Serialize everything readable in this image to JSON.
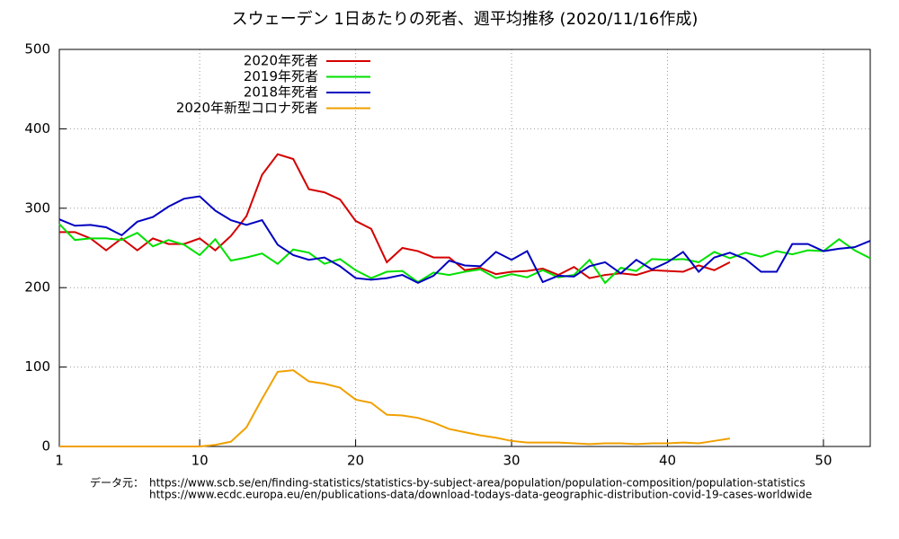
{
  "chart_data": {
    "type": "line",
    "title": "スウェーデン 1日あたりの死者、週平均推移 (2020/11/16作成)",
    "x": [
      1,
      2,
      3,
      4,
      5,
      6,
      7,
      8,
      9,
      10,
      11,
      12,
      13,
      14,
      15,
      16,
      17,
      18,
      19,
      20,
      21,
      22,
      23,
      24,
      25,
      26,
      27,
      28,
      29,
      30,
      31,
      32,
      33,
      34,
      35,
      36,
      37,
      38,
      39,
      40,
      41,
      42,
      43,
      44,
      45,
      46,
      47,
      48,
      49,
      50,
      51,
      52,
      53
    ],
    "xlim": [
      1,
      53
    ],
    "xticks": [
      1,
      10,
      20,
      30,
      40,
      50
    ],
    "ylim": [
      0,
      500
    ],
    "yticks": [
      0,
      100,
      200,
      300,
      400,
      500
    ],
    "grid": true,
    "legend": "top-left",
    "series": [
      {
        "name": "2020年死者",
        "color": "#d40000",
        "values": [
          270,
          270,
          262,
          247,
          262,
          247,
          262,
          255,
          255,
          262,
          247,
          265,
          290,
          342,
          368,
          362,
          324,
          320,
          311,
          284,
          274,
          232,
          250,
          246,
          238,
          238,
          222,
          225,
          217,
          220,
          221,
          224,
          216,
          226,
          212,
          216,
          218,
          216,
          222,
          221,
          220,
          228,
          222,
          232,
          null,
          null,
          null,
          null,
          null,
          null,
          null,
          null,
          null
        ]
      },
      {
        "name": "2019年死者",
        "color": "#00e000",
        "values": [
          280,
          260,
          262,
          262,
          260,
          269,
          252,
          260,
          254,
          241,
          261,
          234,
          238,
          243,
          230,
          248,
          244,
          230,
          236,
          222,
          212,
          220,
          221,
          207,
          219,
          216,
          220,
          223,
          212,
          217,
          213,
          222,
          213,
          216,
          235,
          206,
          225,
          221,
          236,
          235,
          236,
          232,
          245,
          237,
          244,
          239,
          246,
          242,
          247,
          246,
          261,
          247,
          237
        ]
      },
      {
        "name": "2018年死者",
        "color": "#0000c0",
        "values": [
          286,
          278,
          279,
          276,
          266,
          283,
          289,
          302,
          312,
          315,
          297,
          285,
          279,
          285,
          254,
          241,
          235,
          238,
          227,
          212,
          210,
          212,
          216,
          206,
          215,
          234,
          228,
          227,
          245,
          235,
          246,
          207,
          215,
          214,
          227,
          232,
          218,
          235,
          223,
          232,
          245,
          220,
          238,
          244,
          236,
          220,
          220,
          255,
          255,
          246,
          249,
          251,
          259
        ]
      },
      {
        "name": "2020年新型コロナ死者",
        "color": "#f0a000",
        "values": [
          0,
          0,
          0,
          0,
          0,
          0,
          0,
          0,
          0,
          0,
          2,
          6,
          24,
          60,
          94,
          96,
          82,
          79,
          74,
          59,
          55,
          40,
          39,
          36,
          30,
          22,
          18,
          14,
          11,
          7,
          5,
          5,
          5,
          4,
          3,
          4,
          4,
          3,
          4,
          4,
          5,
          4,
          7,
          10,
          null,
          null,
          null,
          null,
          null,
          null,
          null,
          null,
          null
        ]
      }
    ],
    "source": {
      "label": "データ元：",
      "urls": [
        "https://www.scb.se/en/finding-statistics/statistics-by-subject-area/population/population-composition/population-statistics",
        "https://www.ecdc.europa.eu/en/publications-data/download-todays-data-geographic-distribution-covid-19-cases-worldwide"
      ]
    }
  }
}
